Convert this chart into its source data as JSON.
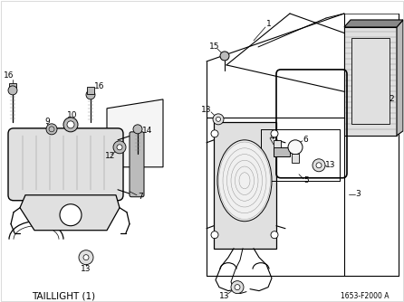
{
  "title": "TAILLIGHT (1)",
  "part_number": "1653-F2000 A",
  "bg": "#ffffff",
  "lc": "#000000",
  "fig_w": 4.46,
  "fig_h": 3.34,
  "dpi": 100,
  "lfs": 6.5,
  "tfs": 7.5,
  "pfs": 5.5,
  "gray_light": "#e0e0e0",
  "gray_mid": "#bbbbbb",
  "gray_dark": "#888888",
  "gray_hatch": "#cccccc"
}
